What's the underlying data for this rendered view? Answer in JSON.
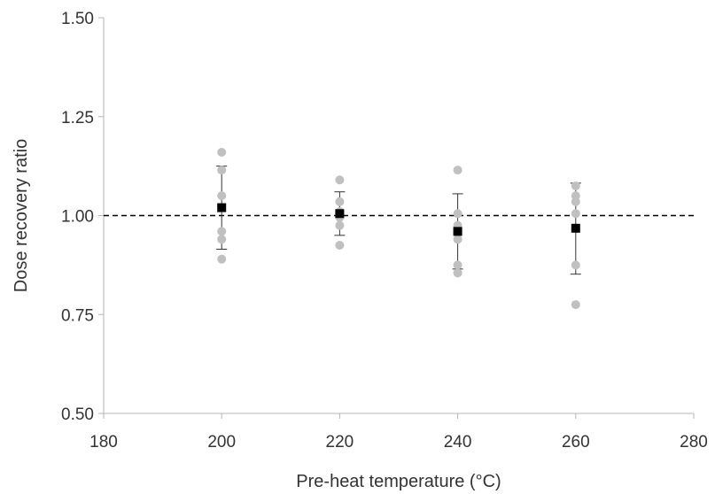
{
  "chart_data": {
    "type": "scatter",
    "xlabel": "Pre-heat temperature (°C)",
    "ylabel": "Dose recovery ratio",
    "xlim": [
      180,
      280
    ],
    "ylim": [
      0.5,
      1.5
    ],
    "x_ticks": [
      "180",
      "200",
      "220",
      "240",
      "260",
      "280"
    ],
    "y_ticks": [
      "0.50",
      "0.75",
      "1.00",
      "1.25",
      "1.50"
    ],
    "grid": false,
    "legend": "none",
    "reference_line": {
      "y": 1.0,
      "style": "dashed",
      "color": "#000000"
    },
    "series": [
      {
        "marker": "circle",
        "color": "#c0c0c0",
        "points": [
          [
            200,
            1.16
          ],
          [
            200,
            1.115
          ],
          [
            200,
            1.05
          ],
          [
            200,
            0.96
          ],
          [
            200,
            0.94
          ],
          [
            200,
            0.89
          ],
          [
            220,
            1.09
          ],
          [
            220,
            1.035
          ],
          [
            220,
            1.01
          ],
          [
            220,
            0.995
          ],
          [
            220,
            0.975
          ],
          [
            220,
            0.925
          ],
          [
            240,
            1.115
          ],
          [
            240,
            1.005
          ],
          [
            240,
            0.975
          ],
          [
            240,
            0.94
          ],
          [
            240,
            0.875
          ],
          [
            240,
            0.855
          ],
          [
            260,
            1.075
          ],
          [
            260,
            1.05
          ],
          [
            260,
            1.035
          ],
          [
            260,
            1.005
          ],
          [
            260,
            0.875
          ],
          [
            260,
            0.775
          ]
        ]
      },
      {
        "marker": "square",
        "color": "#000000",
        "points": [
          {
            "x": 200,
            "y": 1.02,
            "err_low": 0.915,
            "err_high": 1.125
          },
          {
            "x": 220,
            "y": 1.005,
            "err_low": 0.95,
            "err_high": 1.06
          },
          {
            "x": 240,
            "y": 0.96,
            "err_low": 0.865,
            "err_high": 1.055
          },
          {
            "x": 260,
            "y": 0.968,
            "err_low": 0.852,
            "err_high": 1.082
          }
        ]
      }
    ]
  }
}
